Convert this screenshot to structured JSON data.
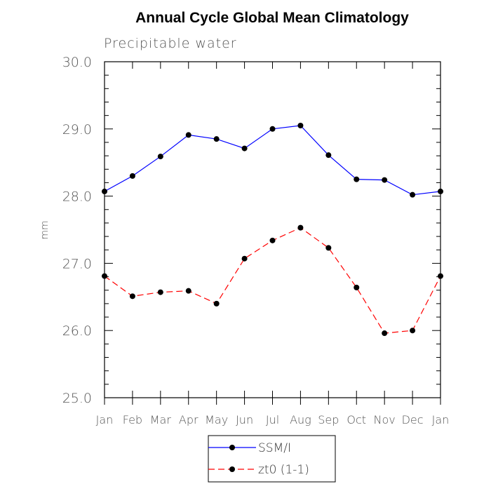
{
  "chart_data": {
    "type": "line",
    "title": "Annual Cycle Global Mean Climatology",
    "subtitle": "Precipitable water",
    "ylabel": "mm",
    "xlabel": "",
    "categories": [
      "Jan",
      "Feb",
      "Mar",
      "Apr",
      "May",
      "Jun",
      "Jul",
      "Aug",
      "Sep",
      "Oct",
      "Nov",
      "Dec",
      "Jan"
    ],
    "ylim": [
      25.0,
      30.0
    ],
    "yticks": [
      "25.0",
      "26.0",
      "27.0",
      "28.0",
      "29.0",
      "30.0"
    ],
    "grid": false,
    "legend_position": "bottom-center",
    "series": [
      {
        "name": "SSM/I",
        "color": "#0000ff",
        "dash": "solid",
        "marker": "filled-circle",
        "values": [
          28.07,
          28.3,
          28.59,
          28.91,
          28.85,
          28.71,
          29.0,
          29.05,
          28.61,
          28.25,
          28.24,
          28.02,
          28.07
        ]
      },
      {
        "name": "zt0 (1-1)",
        "color": "#ff0000",
        "dash": "dashed",
        "marker": "filled-circle",
        "values": [
          26.81,
          26.51,
          26.57,
          26.59,
          26.4,
          27.07,
          27.34,
          27.53,
          27.23,
          26.64,
          25.96,
          26.0,
          26.81
        ]
      }
    ]
  }
}
